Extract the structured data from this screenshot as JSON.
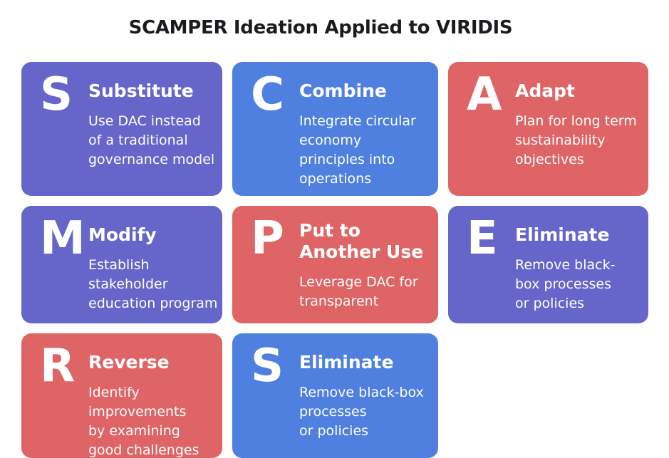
{
  "title": "SCAMPER Ideation Applied to VIRIDIS",
  "colors": {
    "purple": "#6665c9",
    "blue": "#4f80e0",
    "red": "#df6466"
  },
  "cards": [
    {
      "letter": "S",
      "heading": "Substitute",
      "lines": [
        "Use DAC instead",
        "of a traditional",
        "governance model"
      ]
    },
    {
      "letter": "C",
      "heading": "Combine",
      "lines": [
        "Integrate circular",
        "economy",
        "principles into",
        "operations"
      ]
    },
    {
      "letter": "A",
      "heading": "Adapt",
      "lines": [
        "Plan for long term",
        "sustainability",
        "objectives"
      ]
    },
    {
      "letter": "M",
      "heading": "Modify",
      "lines": [
        "Establish",
        "stakeholder",
        "education program"
      ]
    },
    {
      "letter": "P",
      "heading_lines": [
        "Put to",
        "Another Use"
      ],
      "lines": [
        "Leverage DAC for",
        "transparent"
      ]
    },
    {
      "letter": "E",
      "heading": "Eliminate",
      "lines": [
        "Remove black-",
        "box processes",
        "or policies"
      ]
    },
    {
      "letter": "R",
      "heading": "Reverse",
      "lines": [
        "Identify",
        "improvements",
        "by examining",
        "good challenges"
      ]
    },
    {
      "letter": "S",
      "heading": "Eliminate",
      "lines": [
        "Remove black-box",
        "processes",
        "or policies"
      ]
    }
  ]
}
